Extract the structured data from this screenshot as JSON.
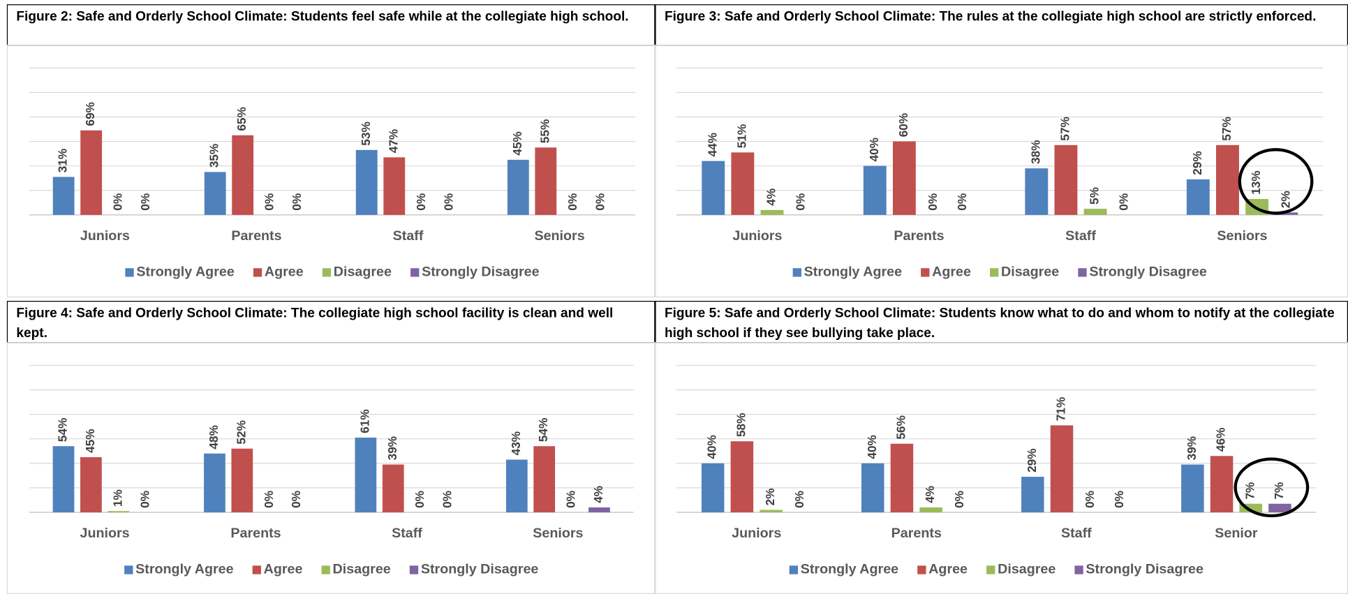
{
  "chart_data": [
    {
      "type": "bar",
      "title": "Figure 2: Safe and Orderly School Climate: Students feel safe while at the collegiate high school.",
      "categories": [
        "Juniors",
        "Parents",
        "Staff",
        "Seniors"
      ],
      "series": [
        {
          "name": "Strongly Agree",
          "color": "#4f81bd",
          "values": [
            31,
            35,
            53,
            45
          ],
          "value_labels": [
            "31%",
            "35%",
            "53%",
            "45%"
          ]
        },
        {
          "name": "Agree",
          "color": "#c0504d",
          "values": [
            69,
            65,
            47,
            55
          ],
          "value_labels": [
            "69%",
            "65%",
            "47%",
            "55%"
          ]
        },
        {
          "name": "Disagree",
          "color": "#9bbb59",
          "values": [
            0,
            0,
            0,
            0
          ],
          "value_labels": [
            "0%",
            "0%",
            "0%",
            "0%"
          ]
        },
        {
          "name": "Strongly Disagree",
          "color": "#8064a2",
          "values": [
            0,
            0,
            0,
            0
          ],
          "value_labels": [
            "0%",
            "0%",
            "0%",
            "0%"
          ]
        }
      ],
      "ylim": [
        0,
        120
      ],
      "yticks": [
        0,
        20,
        40,
        60,
        80,
        100,
        120
      ],
      "grid": true,
      "legend": "bottom"
    },
    {
      "type": "bar",
      "title": "Figure 3: Safe and Orderly School Climate: The rules at the collegiate high school are strictly enforced.",
      "categories": [
        "Juniors",
        "Parents",
        "Staff",
        "Seniors"
      ],
      "series": [
        {
          "name": "Strongly Agree",
          "color": "#4f81bd",
          "values": [
            44,
            40,
            38,
            29
          ],
          "value_labels": [
            "44%",
            "40%",
            "38%",
            "29%"
          ]
        },
        {
          "name": "Agree",
          "color": "#c0504d",
          "values": [
            51,
            60,
            57,
            57
          ],
          "value_labels": [
            "51%",
            "60%",
            "57%",
            "57%"
          ]
        },
        {
          "name": "Disagree",
          "color": "#9bbb59",
          "values": [
            4,
            0,
            5,
            13
          ],
          "value_labels": [
            "4%",
            "0%",
            "5%",
            "13%"
          ]
        },
        {
          "name": "Strongly Disagree",
          "color": "#8064a2",
          "values": [
            0,
            0,
            0,
            2
          ],
          "value_labels": [
            "0%",
            "0%",
            "0%",
            "2%"
          ]
        }
      ],
      "ylim": [
        0,
        120
      ],
      "yticks": [
        0,
        20,
        40,
        60,
        80,
        100,
        120
      ],
      "grid": true,
      "legend": "bottom"
    },
    {
      "type": "bar",
      "title": "Figure 4: Safe and Orderly School Climate: The collegiate high school facility is clean and well kept.",
      "categories": [
        "Juniors",
        "Parents",
        "Staff",
        "Seniors"
      ],
      "series": [
        {
          "name": "Strongly Agree",
          "color": "#4f81bd",
          "values": [
            54,
            48,
            61,
            43
          ],
          "value_labels": [
            "54%",
            "48%",
            "61%",
            "43%"
          ]
        },
        {
          "name": "Agree",
          "color": "#c0504d",
          "values": [
            45,
            52,
            39,
            54
          ],
          "value_labels": [
            "45%",
            "52%",
            "39%",
            "54%"
          ]
        },
        {
          "name": "Disagree",
          "color": "#9bbb59",
          "values": [
            1,
            0,
            0,
            0
          ],
          "value_labels": [
            "1%",
            "0%",
            "0%",
            "0%"
          ]
        },
        {
          "name": "Strongly Disagree",
          "color": "#8064a2",
          "values": [
            0,
            0,
            0,
            4
          ],
          "value_labels": [
            "0%",
            "0%",
            "0%",
            "4%"
          ]
        }
      ],
      "ylim": [
        0,
        120
      ],
      "yticks": [
        0,
        20,
        40,
        60,
        80,
        100,
        120
      ],
      "grid": true,
      "legend": "bottom"
    },
    {
      "type": "bar",
      "title": "Figure 5: Safe and Orderly School Climate: Students know what to do and whom to notify at the collegiate high school if they see bullying take place.",
      "categories": [
        "Juniors",
        "Parents",
        "Staff",
        "Senior"
      ],
      "series": [
        {
          "name": "Strongly Agree",
          "color": "#4f81bd",
          "values": [
            40,
            40,
            29,
            39
          ],
          "value_labels": [
            "40%",
            "40%",
            "29%",
            "39%"
          ]
        },
        {
          "name": "Agree",
          "color": "#c0504d",
          "values": [
            58,
            56,
            71,
            46
          ],
          "value_labels": [
            "58%",
            "56%",
            "71%",
            "46%"
          ]
        },
        {
          "name": "Disagree",
          "color": "#9bbb59",
          "values": [
            2,
            4,
            0,
            7
          ],
          "value_labels": [
            "2%",
            "4%",
            "0%",
            "7%"
          ]
        },
        {
          "name": "Strongly Disagree",
          "color": "#8064a2",
          "values": [
            0,
            0,
            0,
            7
          ],
          "value_labels": [
            "0%",
            "0%",
            "0%",
            "7%"
          ]
        }
      ],
      "ylim": [
        0,
        120
      ],
      "yticks": [
        0,
        20,
        40,
        60,
        80,
        100,
        120
      ],
      "grid": true,
      "legend": "bottom"
    }
  ]
}
